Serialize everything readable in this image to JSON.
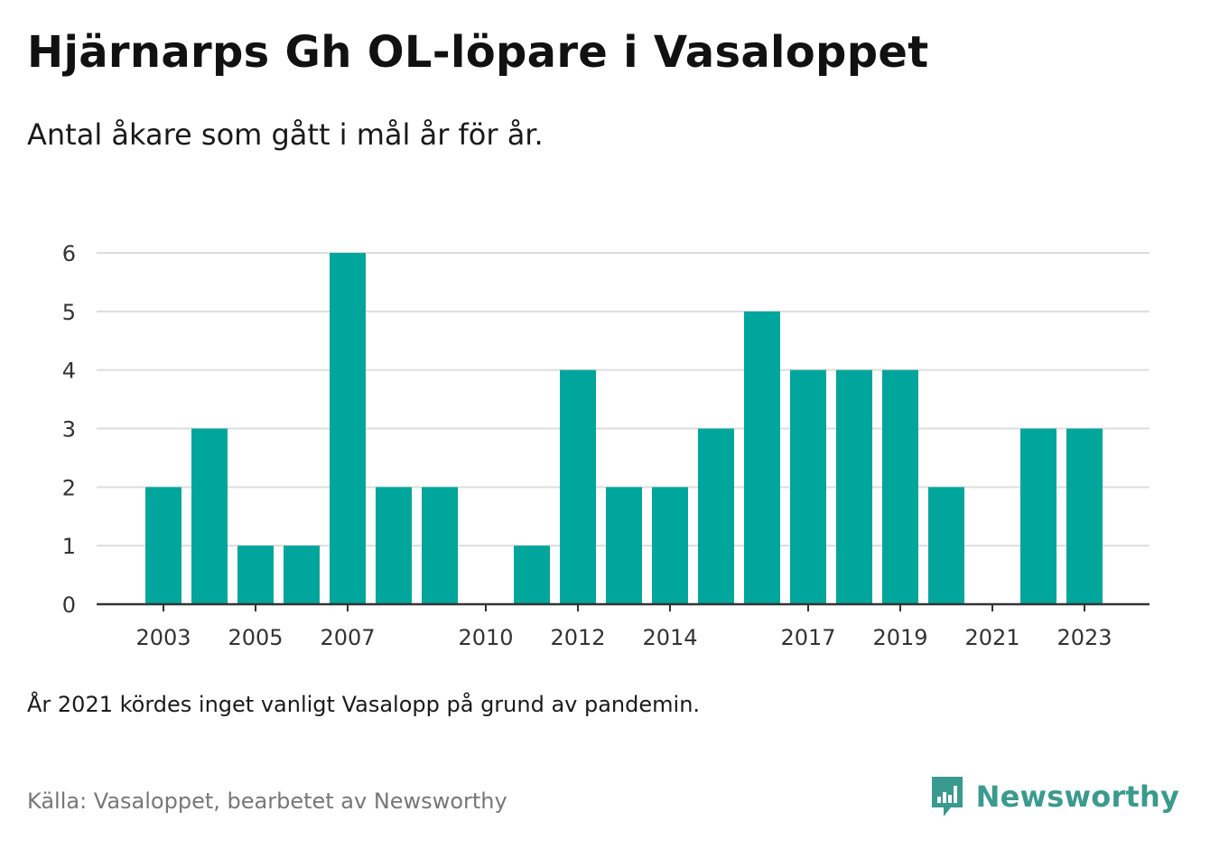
{
  "title": "Hjärnarps Gh OL-löpare i Vasaloppet",
  "subtitle": "Antal åkare som gått i mål år för år.",
  "note": "År 2021 kördes inget vanligt Vasalopp på grund av pandemin.",
  "source": "Källa: Vasaloppet, bearbetet av Newsworthy",
  "brand": {
    "name": "Newsworthy",
    "icon": "newsworthy-logo-icon",
    "color": "#3b9a8e"
  },
  "chart_data": {
    "type": "bar",
    "categories": [
      "2003",
      "2004",
      "2005",
      "2006",
      "2007",
      "2008",
      "2009",
      "2010",
      "2011",
      "2012",
      "2013",
      "2014",
      "2015",
      "2016",
      "2017",
      "2018",
      "2019",
      "2020",
      "2021",
      "2022",
      "2023"
    ],
    "values": [
      2,
      3,
      1,
      1,
      6,
      2,
      2,
      0,
      1,
      4,
      2,
      2,
      3,
      5,
      4,
      4,
      4,
      2,
      0,
      3,
      3
    ],
    "x_tick_labels": [
      "2003",
      "2005",
      "2007",
      "2010",
      "2012",
      "2014",
      "2017",
      "2019",
      "2021",
      "2023"
    ],
    "y_ticks": [
      0,
      1,
      2,
      3,
      4,
      5,
      6
    ],
    "ylim": [
      0,
      6
    ],
    "bar_color": "#00a59b",
    "grid": true,
    "xlabel": "",
    "ylabel": ""
  }
}
